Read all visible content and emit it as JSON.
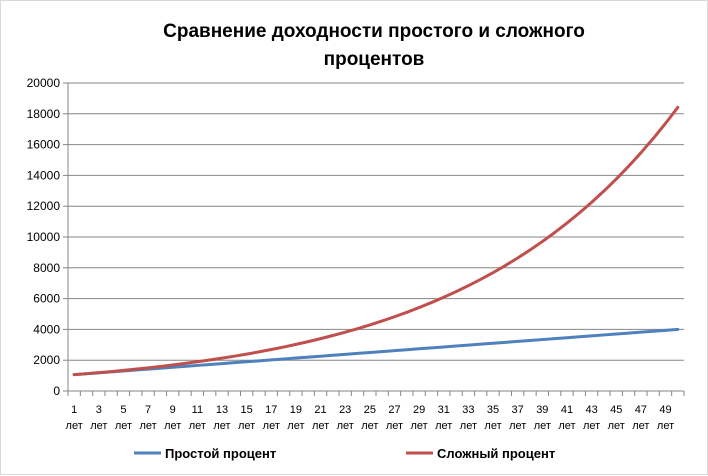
{
  "chart_data": {
    "type": "line",
    "title_lines": [
      "Сравнение доходности простого и сложного",
      "процентов"
    ],
    "x": [
      1,
      2,
      3,
      4,
      5,
      6,
      7,
      8,
      9,
      10,
      11,
      12,
      13,
      14,
      15,
      16,
      17,
      18,
      19,
      20,
      21,
      22,
      23,
      24,
      25,
      26,
      27,
      28,
      29,
      30,
      31,
      32,
      33,
      34,
      35,
      36,
      37,
      38,
      39,
      40,
      41,
      42,
      43,
      44,
      45,
      46,
      47,
      48,
      49,
      50
    ],
    "x_tick_numbers": [
      "1",
      "3",
      "5",
      "7",
      "9",
      "11",
      "13",
      "15",
      "17",
      "19",
      "21",
      "23",
      "25",
      "27",
      "29",
      "31",
      "33",
      "35",
      "37",
      "39",
      "41",
      "43",
      "45",
      "47",
      "49"
    ],
    "x_tick_unit": "лет",
    "ylim": [
      0,
      20000
    ],
    "y_ticks": [
      "0",
      "2000",
      "4000",
      "6000",
      "8000",
      "10000",
      "12000",
      "14000",
      "16000",
      "18000",
      "20000"
    ],
    "grid": true,
    "legend_position": "bottom",
    "series": [
      {
        "name": "Простой процент",
        "color": "#4f81bd",
        "values": [
          1060,
          1120,
          1180,
          1240,
          1300,
          1360,
          1420,
          1480,
          1540,
          1600,
          1660,
          1720,
          1780,
          1840,
          1900,
          1960,
          2020,
          2080,
          2140,
          2200,
          2260,
          2320,
          2380,
          2440,
          2500,
          2560,
          2620,
          2680,
          2740,
          2800,
          2860,
          2920,
          2980,
          3040,
          3100,
          3160,
          3220,
          3280,
          3340,
          3400,
          3460,
          3520,
          3580,
          3640,
          3700,
          3760,
          3820,
          3880,
          3940,
          4000
        ]
      },
      {
        "name": "Сложный процент",
        "color": "#c0504d",
        "values": [
          1060,
          1124,
          1191,
          1262,
          1338,
          1419,
          1504,
          1594,
          1689,
          1791,
          1898,
          2012,
          2133,
          2261,
          2397,
          2540,
          2693,
          2854,
          3026,
          3207,
          3400,
          3604,
          3820,
          4049,
          4292,
          4549,
          4822,
          5112,
          5418,
          5743,
          6088,
          6453,
          6841,
          7251,
          7686,
          8147,
          8636,
          9154,
          9704,
          10286,
          10903,
          11557,
          12250,
          12985,
          13765,
          14590,
          15466,
          16394,
          17378,
          18420
        ]
      }
    ]
  }
}
